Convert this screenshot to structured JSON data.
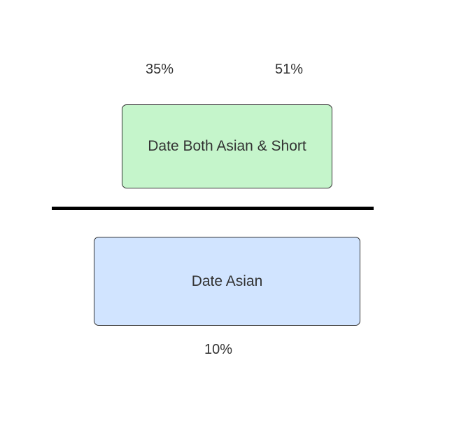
{
  "diagram": {
    "top_left_percent": "35%",
    "top_right_percent": "51%",
    "bottom_percent": "10%",
    "top_box": {
      "label": "Date Both Asian & Short",
      "fill_color": "#c5f5cb"
    },
    "bottom_box": {
      "label": "Date Asian",
      "fill_color": "#d1e4ff"
    },
    "divider_color": "#000000"
  }
}
